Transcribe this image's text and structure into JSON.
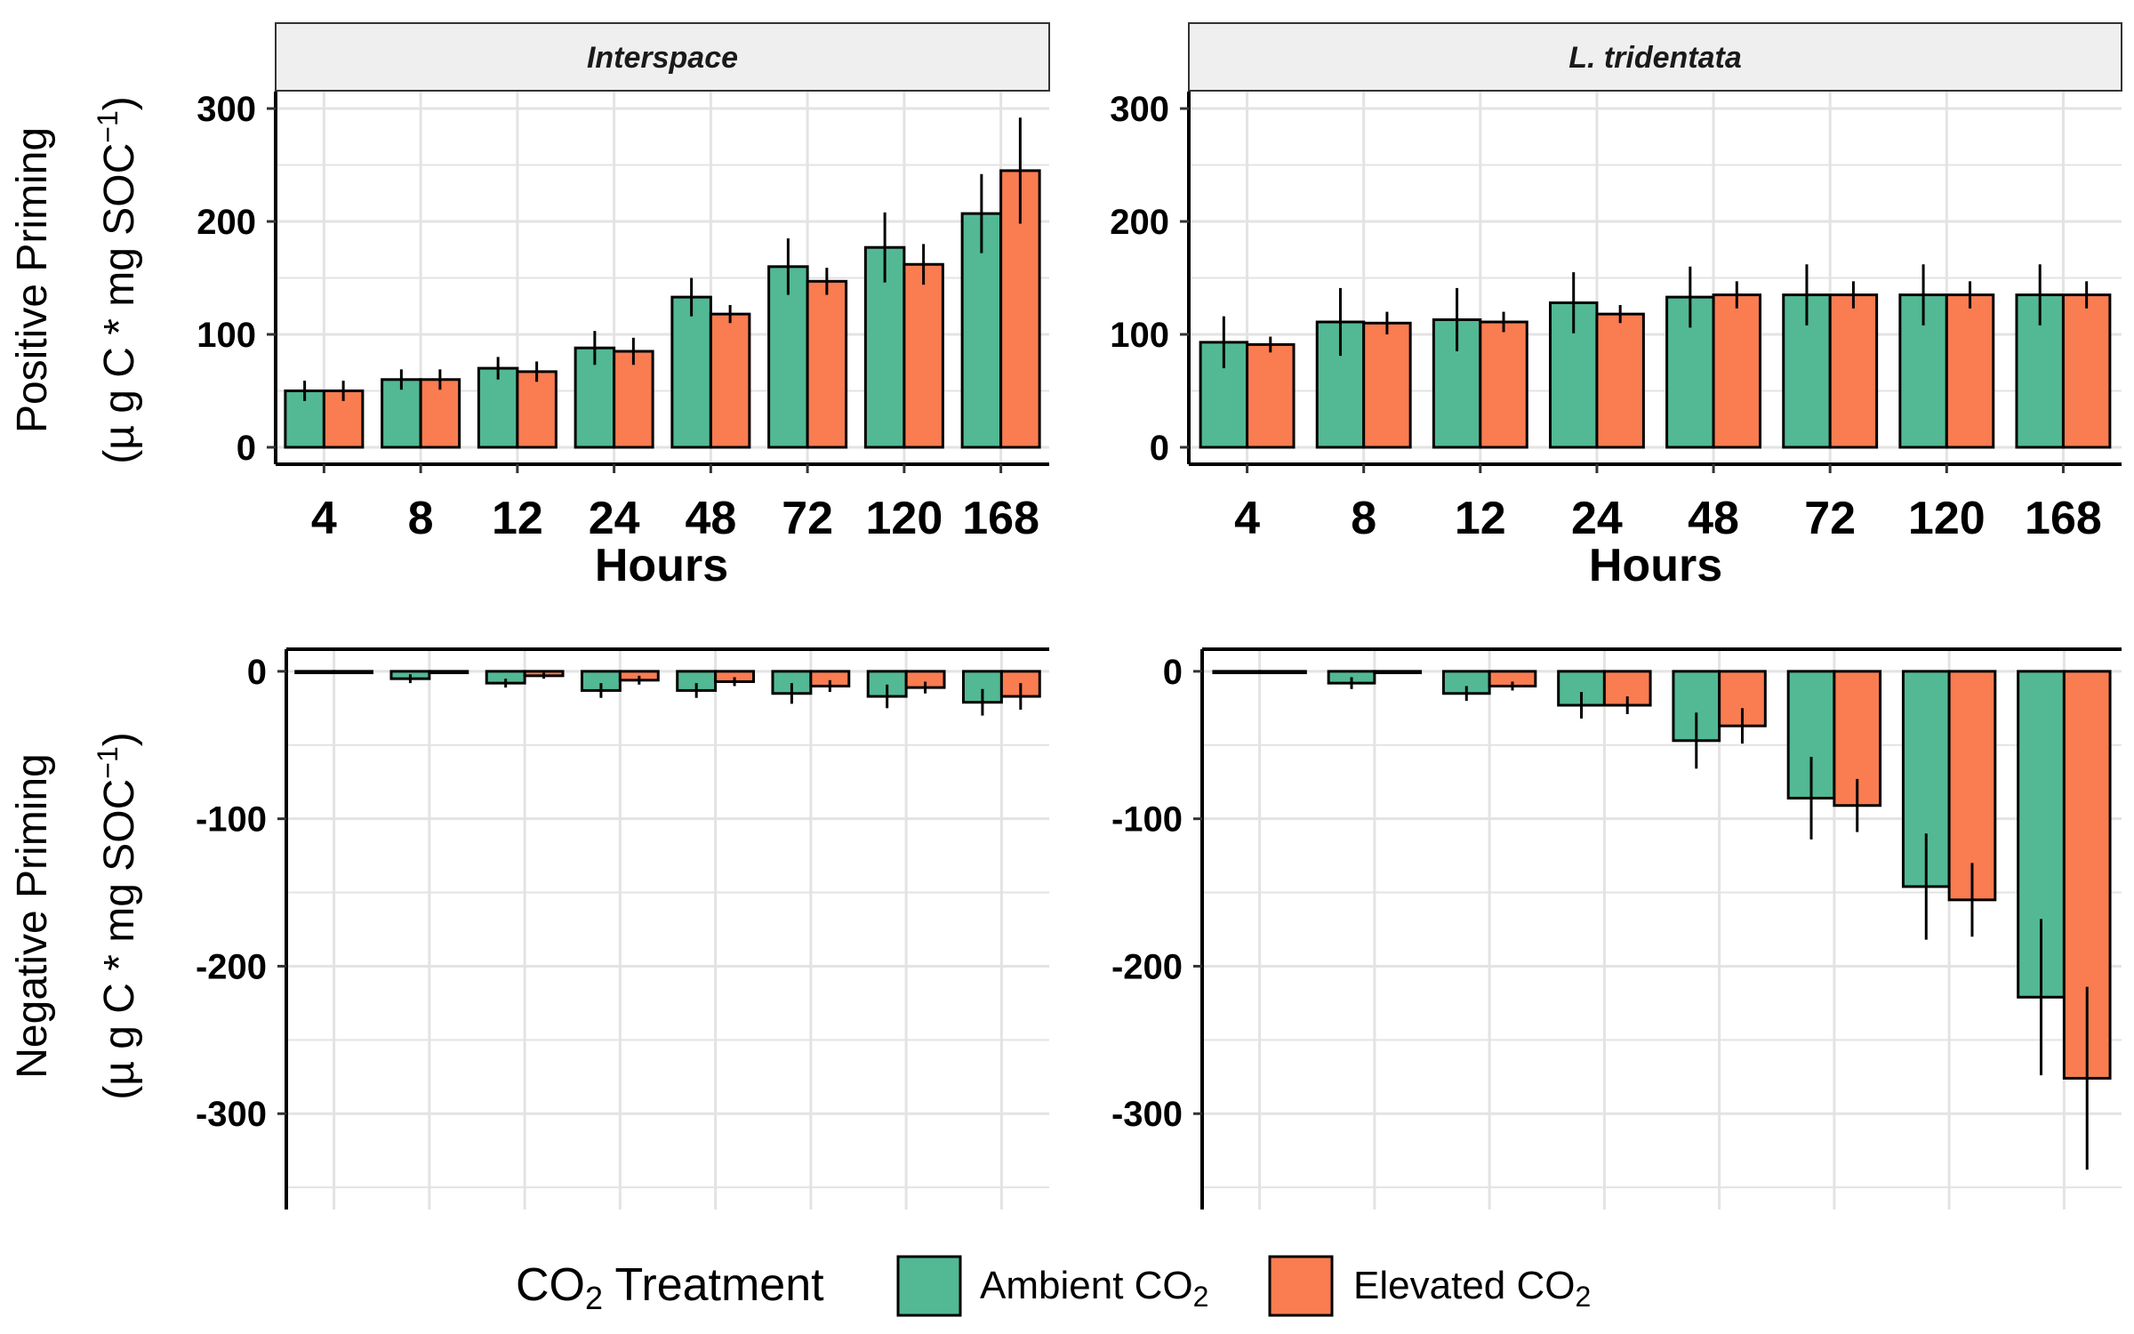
{
  "chart_data": {
    "type": "bar",
    "categories": [
      "4",
      "8",
      "12",
      "24",
      "48",
      "72",
      "120",
      "168"
    ],
    "xlabel": "Hours",
    "panels": [
      {
        "strip": "Interspace",
        "ylabel": "Positive Priming",
        "ylabel_unit_pre": "(µ g C * mg SOC",
        "ylabel_unit_sup": "−1",
        "ylabel_unit_post": ")",
        "ylim": [
          -15,
          315
        ],
        "yticks": [
          0,
          100,
          200,
          300
        ],
        "ytick_labels": [
          "0",
          "100",
          "200",
          "300"
        ],
        "series": [
          {
            "name": "Ambient CO2",
            "values": [
              50,
              60,
              70,
              88,
              133,
              160,
              177,
              207
            ],
            "errors": [
              9,
              9,
              10,
              15,
              17,
              25,
              31,
              35
            ]
          },
          {
            "name": "Elevated CO2",
            "values": [
              50,
              60,
              67,
              85,
              118,
              147,
              162,
              245
            ],
            "errors": [
              9,
              9,
              9,
              12,
              8,
              12,
              18,
              47
            ]
          }
        ]
      },
      {
        "strip": "L. tridentata",
        "ylabel": "Positive Priming",
        "ylim": [
          -15,
          315
        ],
        "yticks": [
          0,
          100,
          200,
          300
        ],
        "ytick_labels": [
          "0",
          "100",
          "200",
          "300"
        ],
        "series": [
          {
            "name": "Ambient CO2",
            "values": [
              93,
              111,
              113,
              128,
              133,
              135,
              135,
              135
            ],
            "errors": [
              23,
              30,
              28,
              27,
              27,
              27,
              27,
              27
            ]
          },
          {
            "name": "Elevated CO2",
            "values": [
              91,
              110,
              111,
              118,
              135,
              135,
              135,
              135
            ],
            "errors": [
              7,
              10,
              9,
              8,
              12,
              12,
              12,
              12
            ]
          }
        ]
      },
      {
        "strip": "",
        "ylabel": "Negative Priming",
        "ylabel_unit_pre": "(µ g C * mg SOC",
        "ylabel_unit_sup": "−1",
        "ylabel_unit_post": ")",
        "ylim": [
          -365,
          15
        ],
        "yticks": [
          0,
          -100,
          -200,
          -300
        ],
        "ytick_labels": [
          "0",
          "-100",
          "-200",
          "-300"
        ],
        "series": [
          {
            "name": "Ambient CO2",
            "values": [
              -1,
              -5,
              -8,
              -13,
              -13,
              -15,
              -17,
              -21
            ],
            "errors": [
              1,
              3,
              3,
              5,
              5,
              7,
              8,
              9
            ]
          },
          {
            "name": "Elevated CO2",
            "values": [
              -1,
              -1,
              -3,
              -6,
              -7,
              -10,
              -11,
              -17
            ],
            "errors": [
              1,
              1,
              2,
              3,
              3,
              4,
              4,
              9
            ]
          }
        ]
      },
      {
        "strip": "",
        "ylabel": "Negative Priming",
        "ylim": [
          -365,
          15
        ],
        "yticks": [
          0,
          -100,
          -200,
          -300
        ],
        "ytick_labels": [
          "0",
          "-100",
          "-200",
          "-300"
        ],
        "series": [
          {
            "name": "Ambient CO2",
            "values": [
              -1,
              -8,
              -15,
              -23,
              -47,
              -86,
              -146,
              -221
            ],
            "errors": [
              1,
              4,
              5,
              9,
              19,
              28,
              36,
              53
            ]
          },
          {
            "name": "Elevated CO2",
            "values": [
              -1,
              -1,
              -10,
              -23,
              -37,
              -91,
              -155,
              -276
            ],
            "errors": [
              1,
              1,
              3,
              6,
              12,
              18,
              25,
              62
            ]
          }
        ]
      }
    ],
    "legend": {
      "title_pre": "CO",
      "title_sub": "2",
      "title_post": " Treatment",
      "position": "bottom",
      "items": [
        {
          "label_pre": "Ambient CO",
          "label_sub": "2",
          "color": "#52B994"
        },
        {
          "label_pre": "Elevated CO",
          "label_sub": "2",
          "color": "#FA7C51"
        }
      ]
    },
    "colors": {
      "ambient": "#52B994",
      "elevated": "#FA7C51",
      "grid": "#e3e3e3",
      "strip_fill": "#efefef"
    },
    "grid": true
  }
}
